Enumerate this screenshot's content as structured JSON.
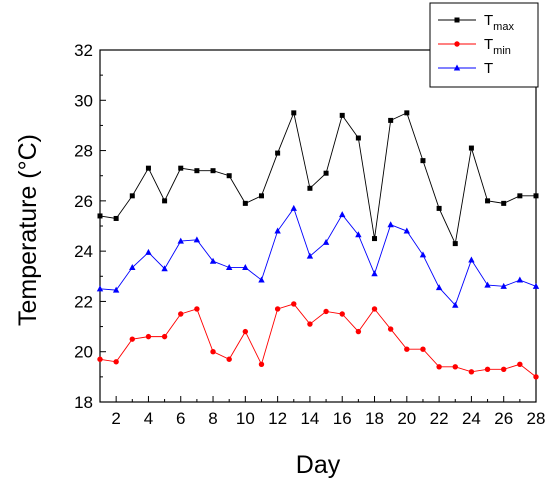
{
  "chart_data": {
    "type": "line",
    "xlabel": "Day",
    "ylabel": "Temperature (°C)",
    "xlim": [
      1,
      28
    ],
    "ylim": [
      18,
      32
    ],
    "xticks": [
      2,
      4,
      6,
      8,
      10,
      12,
      14,
      16,
      18,
      20,
      22,
      24,
      26,
      28
    ],
    "yticks": [
      18,
      20,
      22,
      24,
      26,
      28,
      30,
      32
    ],
    "grid": false,
    "legend_position": "top-right",
    "x": [
      1,
      2,
      3,
      4,
      5,
      6,
      7,
      8,
      9,
      10,
      11,
      12,
      13,
      14,
      15,
      16,
      17,
      18,
      19,
      20,
      21,
      22,
      23,
      24,
      25,
      26,
      27,
      28
    ],
    "series": [
      {
        "name": "T",
        "name_sub": "max",
        "color": "#000000",
        "marker": "square",
        "values": [
          25.4,
          25.3,
          26.2,
          27.3,
          26.0,
          27.3,
          27.2,
          27.2,
          27.0,
          25.9,
          26.2,
          27.9,
          29.5,
          26.5,
          27.1,
          29.4,
          28.5,
          24.5,
          29.2,
          29.5,
          27.6,
          25.7,
          24.3,
          28.1,
          26.0,
          25.9,
          26.2,
          26.2
        ]
      },
      {
        "name": "T",
        "name_sub": "min",
        "color": "#ff0000",
        "marker": "circle",
        "values": [
          19.7,
          19.6,
          20.5,
          20.6,
          20.6,
          21.5,
          21.7,
          20.0,
          19.7,
          20.8,
          19.5,
          21.7,
          21.9,
          21.1,
          21.6,
          21.5,
          20.8,
          21.7,
          20.9,
          20.1,
          20.1,
          19.4,
          19.4,
          19.2,
          19.3,
          19.3,
          19.5,
          19.0
        ]
      },
      {
        "name": "T",
        "name_sub": "",
        "color": "#0000ff",
        "marker": "triangle",
        "values": [
          22.5,
          22.45,
          23.35,
          23.95,
          23.3,
          24.4,
          24.45,
          23.6,
          23.35,
          23.35,
          22.85,
          24.8,
          25.7,
          23.8,
          24.35,
          25.45,
          24.65,
          23.1,
          25.05,
          24.8,
          23.85,
          22.55,
          21.85,
          23.65,
          22.65,
          22.6,
          22.85,
          22.6
        ]
      }
    ]
  }
}
